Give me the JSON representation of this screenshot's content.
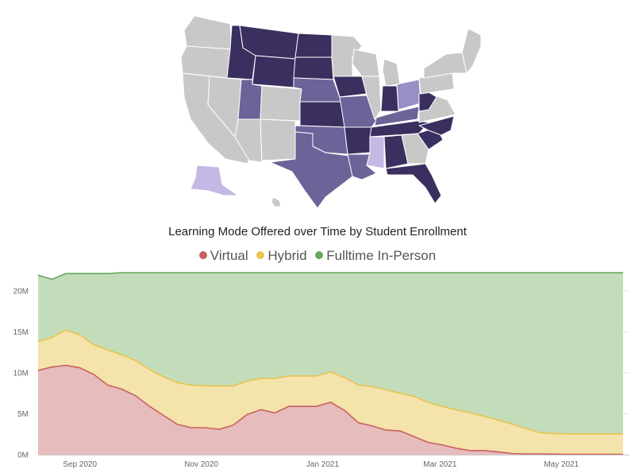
{
  "chart_data": [
    {
      "type": "map",
      "region": "United States",
      "states": [
        {
          "code": "WA",
          "shade": "gray"
        },
        {
          "code": "OR",
          "shade": "gray"
        },
        {
          "code": "CA",
          "shade": "gray"
        },
        {
          "code": "NV",
          "shade": "gray"
        },
        {
          "code": "ID",
          "shade": "dark"
        },
        {
          "code": "MT",
          "shade": "dark"
        },
        {
          "code": "WY",
          "shade": "dark"
        },
        {
          "code": "UT",
          "shade": "medium"
        },
        {
          "code": "AZ",
          "shade": "gray"
        },
        {
          "code": "CO",
          "shade": "gray"
        },
        {
          "code": "NM",
          "shade": "gray"
        },
        {
          "code": "ND",
          "shade": "dark"
        },
        {
          "code": "SD",
          "shade": "dark"
        },
        {
          "code": "NE",
          "shade": "medium"
        },
        {
          "code": "KS",
          "shade": "dark"
        },
        {
          "code": "OK",
          "shade": "medium"
        },
        {
          "code": "TX",
          "shade": "medium"
        },
        {
          "code": "MN",
          "shade": "gray"
        },
        {
          "code": "IA",
          "shade": "dark"
        },
        {
          "code": "MO",
          "shade": "medium"
        },
        {
          "code": "AR",
          "shade": "dark"
        },
        {
          "code": "LA",
          "shade": "medium"
        },
        {
          "code": "WI",
          "shade": "gray"
        },
        {
          "code": "IL",
          "shade": "gray"
        },
        {
          "code": "MI",
          "shade": "gray"
        },
        {
          "code": "IN",
          "shade": "dark"
        },
        {
          "code": "OH",
          "shade": "medium-light"
        },
        {
          "code": "KY",
          "shade": "medium"
        },
        {
          "code": "TN",
          "shade": "dark"
        },
        {
          "code": "MS",
          "shade": "light"
        },
        {
          "code": "AL",
          "shade": "dark"
        },
        {
          "code": "GA",
          "shade": "gray"
        },
        {
          "code": "FL",
          "shade": "dark"
        },
        {
          "code": "SC",
          "shade": "dark"
        },
        {
          "code": "NC",
          "shade": "dark"
        },
        {
          "code": "VA",
          "shade": "gray"
        },
        {
          "code": "WV",
          "shade": "dark"
        },
        {
          "code": "PA",
          "shade": "gray"
        },
        {
          "code": "NY",
          "shade": "gray"
        },
        {
          "code": "NE-REGION",
          "shade": "gray"
        },
        {
          "code": "AK",
          "shade": "light"
        },
        {
          "code": "HI",
          "shade": "gray"
        }
      ],
      "colors": {
        "gray": "#c8c8c8",
        "dark": "#3a2f5f",
        "medium": "#6c6399",
        "medium-light": "#9a8fc4",
        "light": "#c3b9e3",
        "border": "#ffffff"
      }
    },
    {
      "type": "area",
      "stacked": true,
      "title": "Learning Mode Offered over Time by Student Enrollment",
      "legend_position": "top-center",
      "grid": true,
      "x_dates": [
        "2020-08-17",
        "2020-08-24",
        "2020-08-31",
        "2020-09-07",
        "2020-09-14",
        "2020-09-21",
        "2020-09-28",
        "2020-10-05",
        "2020-10-12",
        "2020-10-19",
        "2020-10-26",
        "2020-11-02",
        "2020-11-09",
        "2020-11-16",
        "2020-11-23",
        "2020-11-30",
        "2020-12-07",
        "2020-12-14",
        "2020-12-21",
        "2020-12-28",
        "2021-01-04",
        "2021-01-11",
        "2021-01-18",
        "2021-01-25",
        "2021-02-01",
        "2021-02-08",
        "2021-02-15",
        "2021-02-22",
        "2021-03-01",
        "2021-03-08",
        "2021-03-15",
        "2021-03-22",
        "2021-03-29",
        "2021-04-05",
        "2021-04-12",
        "2021-04-19",
        "2021-04-26",
        "2021-05-03",
        "2021-05-10",
        "2021-05-17",
        "2021-05-24",
        "2021-05-31",
        "2021-06-07"
      ],
      "series": [
        {
          "name": "Virtual",
          "color": "#c9605e",
          "fill": "#e6bcbd",
          "values": [
            10.3,
            10.7,
            10.9,
            10.6,
            9.8,
            8.5,
            8.0,
            7.2,
            5.9,
            4.8,
            3.7,
            3.3,
            3.3,
            3.1,
            3.6,
            4.9,
            5.5,
            5.1,
            5.9,
            5.9,
            5.9,
            6.4,
            5.4,
            3.9,
            3.5,
            3.0,
            2.9,
            2.2,
            1.5,
            1.2,
            0.8,
            0.5,
            0.5,
            0.35,
            0.15,
            0.1,
            0.1,
            0.08,
            0.05,
            0.05,
            0.05,
            0.05,
            0.05
          ]
        },
        {
          "name": "Hybrid",
          "color": "#e8c34e",
          "fill": "#f4e3ab",
          "values": [
            3.5,
            3.6,
            4.3,
            4.0,
            3.6,
            4.3,
            4.2,
            4.3,
            4.5,
            4.7,
            5.1,
            5.2,
            5.1,
            5.3,
            4.8,
            4.1,
            3.8,
            4.2,
            3.7,
            3.7,
            3.7,
            3.7,
            4.0,
            4.6,
            4.8,
            4.9,
            4.6,
            4.9,
            4.9,
            4.7,
            4.7,
            4.6,
            4.2,
            3.9,
            3.6,
            3.1,
            2.6,
            2.5,
            2.5,
            2.5,
            2.5,
            2.5,
            2.5
          ]
        },
        {
          "name": "Fulltime In-Person",
          "color": "#6aa75b",
          "fill": "#c3ddbb",
          "values": [
            8.1,
            7.1,
            6.9,
            7.5,
            8.7,
            9.3,
            10.0,
            10.7,
            11.8,
            12.7,
            13.4,
            13.7,
            13.8,
            13.8,
            13.8,
            13.2,
            12.9,
            12.9,
            12.6,
            12.6,
            12.6,
            12.1,
            12.8,
            13.7,
            13.9,
            14.3,
            14.7,
            15.1,
            15.8,
            16.3,
            16.7,
            17.1,
            17.5,
            17.95,
            18.45,
            19.0,
            19.5,
            19.62,
            19.65,
            19.65,
            19.65,
            19.65,
            19.65
          ]
        }
      ],
      "ylim": [
        0,
        22.5
      ],
      "y_ticks": [
        0,
        5,
        10,
        15,
        20
      ],
      "y_tick_labels": [
        "0M",
        "5M",
        "10M",
        "15M",
        "20M"
      ],
      "x_ticks": [
        {
          "date": "2020-09-07",
          "label": "Sep 2020"
        },
        {
          "date": "2020-11-07",
          "label": "Nov 2020"
        },
        {
          "date": "2021-01-07",
          "label": "Jan 2021"
        },
        {
          "date": "2021-03-07",
          "label": "Mar 2021"
        },
        {
          "date": "2021-05-07",
          "label": "May 2021"
        }
      ]
    }
  ]
}
